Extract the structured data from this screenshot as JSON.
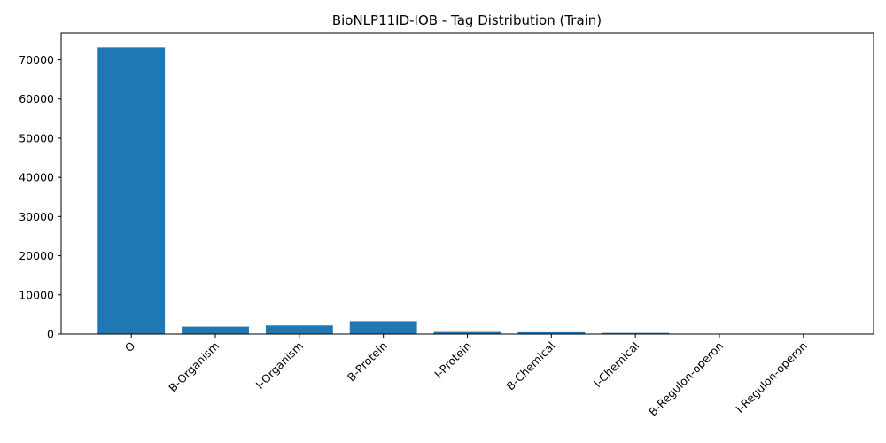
{
  "chart_data": {
    "type": "bar",
    "title": "BioNLP11ID-IOB - Tag Distribution (Train)",
    "xlabel": "",
    "ylabel": "",
    "categories": [
      "O",
      "B-Organism",
      "I-Organism",
      "B-Protein",
      "I-Protein",
      "B-Chemical",
      "I-Chemical",
      "B-Regulon-operon",
      "I-Regulon-operon"
    ],
    "values": [
      73200,
      1900,
      2200,
      3300,
      550,
      480,
      300,
      40,
      30
    ],
    "ylim": [
      0,
      76900
    ],
    "yticks": [
      0,
      10000,
      20000,
      30000,
      40000,
      50000,
      60000,
      70000
    ],
    "grid": false,
    "bar_color": "#1f77b4",
    "x_tick_rotation": 45
  }
}
